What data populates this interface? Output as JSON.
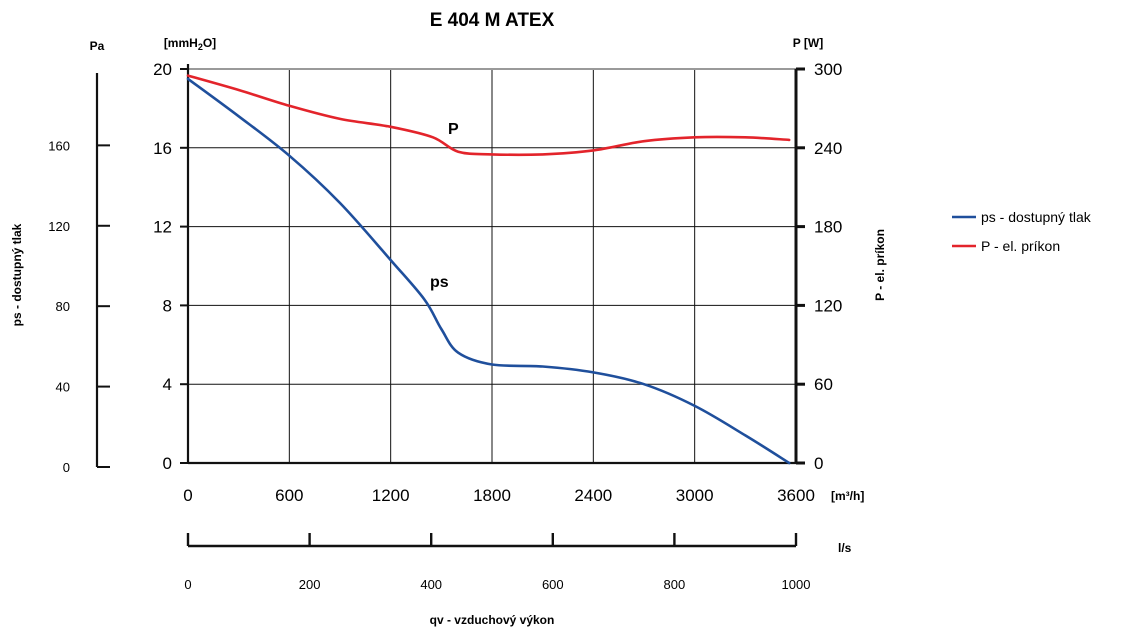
{
  "chart_data": {
    "type": "line",
    "title": "E 404 M ATEX",
    "xlabel": "qv - vzduchový výkon",
    "x_unit": "[m³/h]",
    "x_secondary_unit": "l/s",
    "y_left_outer_unit": "Pa",
    "y_left_outer_label": "ps - dostupný tlak",
    "y_left_unit": "[mmH2O]",
    "y_right_unit": "P [W]",
    "y_right_label": "P - el. príkon",
    "xlim": [
      0,
      3600
    ],
    "x_ticks": [
      "0",
      "600",
      "1200",
      "1800",
      "2400",
      "3000",
      "3600"
    ],
    "x_secondary_lim": [
      0,
      1000
    ],
    "x_secondary_ticks": [
      "0",
      "200",
      "400",
      "600",
      "800",
      "1000"
    ],
    "y_left_lim": [
      0,
      20
    ],
    "y_left_ticks": [
      "0",
      "4",
      "8",
      "12",
      "16",
      "20"
    ],
    "y_pa_lim": [
      0,
      196
    ],
    "y_pa_ticks": [
      {
        "value": 0,
        "label": "0"
      },
      {
        "value": 40,
        "label": "40"
      },
      {
        "value": 80,
        "label": "80"
      },
      {
        "value": 120,
        "label": "120"
      },
      {
        "value": 160,
        "label": "160"
      }
    ],
    "y_right_lim": [
      0,
      300
    ],
    "y_right_ticks": [
      "0",
      "60",
      "120",
      "180",
      "240",
      "300"
    ],
    "grid": true,
    "legend_position": "right",
    "series": [
      {
        "name": "ps - dostupný tlak",
        "label": "ps",
        "color": "#1f4f9c",
        "axis": "left",
        "x": [
          0,
          300,
          600,
          900,
          1200,
          1400,
          1500,
          1600,
          1800,
          2100,
          2400,
          2700,
          3000,
          3300,
          3560
        ],
        "y": [
          19.5,
          17.6,
          15.6,
          13.2,
          10.3,
          8.3,
          6.8,
          5.6,
          5.0,
          4.9,
          4.6,
          4.0,
          2.9,
          1.4,
          0
        ]
      },
      {
        "name": "P - el. príkon",
        "label": "P",
        "color": "#e3242b",
        "axis": "right",
        "x": [
          0,
          300,
          600,
          900,
          1200,
          1450,
          1600,
          1800,
          2100,
          2400,
          2700,
          3000,
          3300,
          3560
        ],
        "y": [
          295,
          284,
          272,
          262,
          256,
          248,
          237,
          235,
          235,
          238,
          245,
          248,
          248,
          246
        ]
      }
    ]
  }
}
